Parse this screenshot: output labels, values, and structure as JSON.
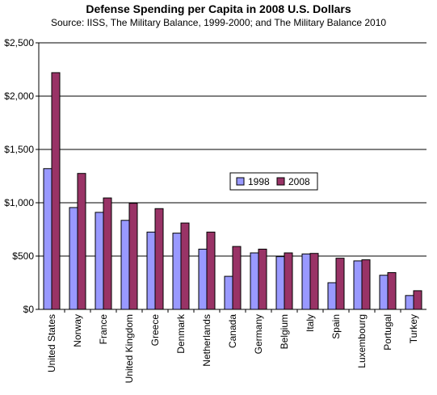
{
  "chart_data": {
    "type": "bar",
    "title": "Defense Spending per Capita in 2008 U.S. Dollars",
    "subtitle": "Source: IISS, The Military Balance, 1999-2000; and The Military Balance 2010",
    "categories": [
      "United States",
      "Norway",
      "France",
      "United Kingdom",
      "Greece",
      "Denmark",
      "Netherlands",
      "Canada",
      "Germany",
      "Belgium",
      "Italy",
      "Spain",
      "Luxembourg",
      "Portugal",
      "Turkey"
    ],
    "series": [
      {
        "name": "1998",
        "color": "#9999ff",
        "values": [
          1320,
          955,
          910,
          835,
          725,
          715,
          565,
          310,
          530,
          495,
          520,
          250,
          455,
          320,
          130
        ]
      },
      {
        "name": "2008",
        "color": "#993366",
        "values": [
          2220,
          1275,
          1045,
          995,
          945,
          810,
          725,
          590,
          565,
          530,
          525,
          480,
          465,
          345,
          175
        ]
      }
    ],
    "ylim": [
      0,
      2500
    ],
    "yticks": [
      0,
      500,
      1000,
      1500,
      2000,
      2500
    ],
    "ytick_labels": [
      "$0",
      "$500",
      "$1,000",
      "$1,500",
      "$2,000",
      "$2,500"
    ],
    "grid": true,
    "legend_position": "center-right"
  }
}
